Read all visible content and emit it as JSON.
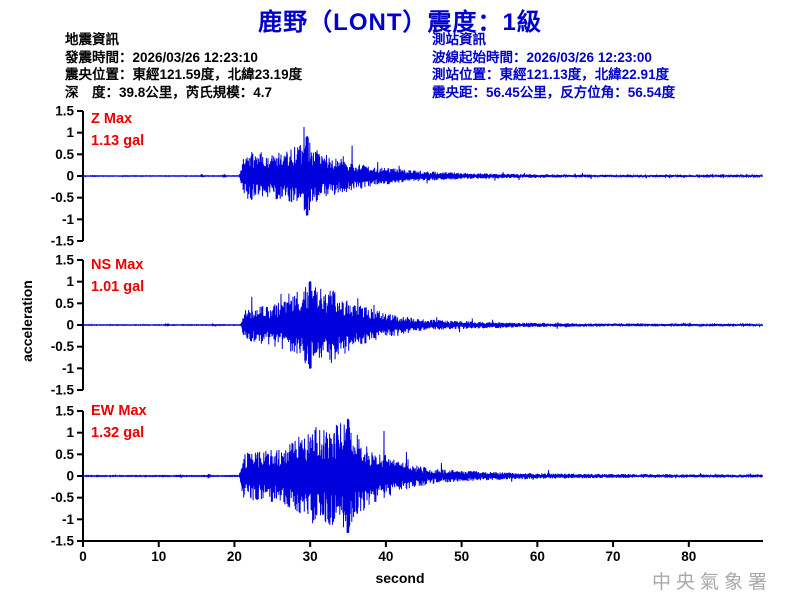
{
  "header": {
    "title": "鹿野（LONT）震度：1級"
  },
  "earthquake_info": {
    "heading": "地震資訊",
    "origin_time": "發震時間：2026/03/26 12:23:10",
    "epicenter": "震央位置：東經121.59度，北緯23.19度",
    "depth_magnitude": "深　度：39.8公里，芮氏規模：4.7"
  },
  "station_info": {
    "heading": "測站資訊",
    "wave_start_time": "波線起始時間：2026/03/26 12:23:00",
    "station_location": "測站位置：東經121.13度，北緯22.91度",
    "distance_azimuth": "震央距：56.45公里，反方位角：56.54度"
  },
  "watermark": "中央氣象署",
  "colors": {
    "accent_blue": "#0000cc",
    "trace_blue": "#0000dd",
    "label_red": "#ee0000",
    "axis_black": "#000000",
    "watermark_gray": "#a8a8a8"
  },
  "chart_data": {
    "type": "line",
    "title": "鹿野（LONT）震度：1級",
    "xlabel": "second",
    "ylabel": "acceleration",
    "x_range": [
      0,
      89.8
    ],
    "x_ticks": [
      0,
      10,
      20,
      30,
      40,
      50,
      60,
      70,
      80
    ],
    "ylim": [
      -1.5,
      1.5
    ],
    "y_ticks": [
      1.5,
      1,
      0.5,
      0,
      -0.5,
      -1,
      -1.5
    ],
    "y_tick_labels": [
      "1.5",
      "1",
      "0.5",
      "0",
      "-0.5",
      "-1",
      "-1.5"
    ],
    "grid": false,
    "legend_position": "none",
    "unit": "gal",
    "series": [
      {
        "name": "Z",
        "max_label": "Z Max",
        "max_value_label": "1.13 gal",
        "max_gal": 1.13,
        "peak_time_s": 29.6,
        "envelope": [
          [
            0,
            0.006
          ],
          [
            15.4,
            0.006
          ],
          [
            15.7,
            0.06
          ],
          [
            16,
            0.006
          ],
          [
            18.4,
            0.006
          ],
          [
            18.7,
            0.05
          ],
          [
            19,
            0.006
          ],
          [
            20.6,
            0.006
          ],
          [
            21.2,
            0.5
          ],
          [
            21.8,
            0.62
          ],
          [
            23,
            0.66
          ],
          [
            25,
            0.6
          ],
          [
            27,
            0.72
          ],
          [
            29,
            0.85
          ],
          [
            29.6,
            1.0
          ],
          [
            30.2,
            0.8
          ],
          [
            31.5,
            0.62
          ],
          [
            33,
            0.52
          ],
          [
            35,
            0.42
          ],
          [
            37,
            0.32
          ],
          [
            39,
            0.25
          ],
          [
            42,
            0.18
          ],
          [
            45,
            0.13
          ],
          [
            48,
            0.1
          ],
          [
            52,
            0.075
          ],
          [
            57,
            0.055
          ],
          [
            63,
            0.042
          ],
          [
            70,
            0.034
          ],
          [
            80,
            0.028
          ],
          [
            89.8,
            0.026
          ]
        ]
      },
      {
        "name": "NS",
        "max_label": "NS Max",
        "max_value_label": "1.01 gal",
        "max_gal": 1.01,
        "peak_time_s": 30,
        "envelope": [
          [
            0,
            0.006
          ],
          [
            10.8,
            0.006
          ],
          [
            11.1,
            0.045
          ],
          [
            11.4,
            0.006
          ],
          [
            17,
            0.006
          ],
          [
            17.3,
            0.05
          ],
          [
            17.6,
            0.006
          ],
          [
            20.8,
            0.006
          ],
          [
            21.4,
            0.38
          ],
          [
            23,
            0.44
          ],
          [
            25,
            0.5
          ],
          [
            27,
            0.64
          ],
          [
            28.5,
            0.82
          ],
          [
            30,
            1.0
          ],
          [
            31.2,
            0.86
          ],
          [
            32.8,
            0.92
          ],
          [
            34.5,
            0.62
          ],
          [
            36,
            0.52
          ],
          [
            38,
            0.4
          ],
          [
            40,
            0.3
          ],
          [
            42,
            0.22
          ],
          [
            45,
            0.14
          ],
          [
            48,
            0.11
          ],
          [
            52,
            0.085
          ],
          [
            57,
            0.062
          ],
          [
            63,
            0.047
          ],
          [
            70,
            0.037
          ],
          [
            80,
            0.031
          ],
          [
            89.8,
            0.029
          ]
        ]
      },
      {
        "name": "EW",
        "max_label": "EW Max",
        "max_value_label": "1.32 gal",
        "max_gal": 1.32,
        "peak_time_s": 35,
        "envelope": [
          [
            0,
            0.006
          ],
          [
            12.5,
            0.006
          ],
          [
            12.8,
            0.045
          ],
          [
            13.1,
            0.006
          ],
          [
            16.3,
            0.006
          ],
          [
            16.6,
            0.055
          ],
          [
            16.9,
            0.006
          ],
          [
            20.6,
            0.006
          ],
          [
            21.2,
            0.42
          ],
          [
            23,
            0.46
          ],
          [
            25,
            0.5
          ],
          [
            27,
            0.56
          ],
          [
            29,
            0.78
          ],
          [
            30.5,
            0.92
          ],
          [
            32,
            0.86
          ],
          [
            33.5,
            0.96
          ],
          [
            35,
            1.0
          ],
          [
            36.5,
            0.72
          ],
          [
            38,
            0.52
          ],
          [
            40,
            0.4
          ],
          [
            42,
            0.27
          ],
          [
            44,
            0.2
          ],
          [
            47,
            0.13
          ],
          [
            51,
            0.095
          ],
          [
            56,
            0.065
          ],
          [
            62,
            0.048
          ],
          [
            70,
            0.037
          ],
          [
            80,
            0.031
          ],
          [
            89.8,
            0.029
          ]
        ]
      }
    ]
  }
}
